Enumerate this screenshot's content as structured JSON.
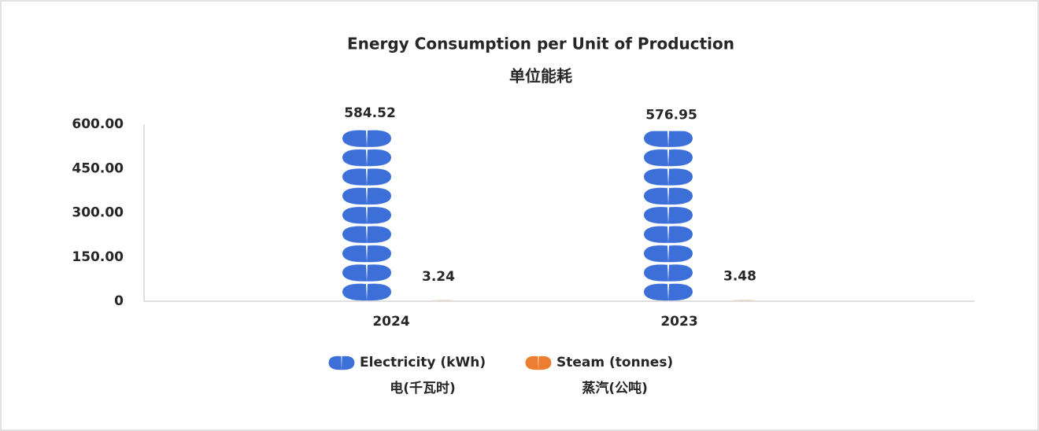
{
  "chart_data": {
    "type": "pictograph",
    "title": "Energy Consumption per Unit of Production",
    "subtitle": "单位能耗",
    "categories": [
      "2024",
      "2023"
    ],
    "series": [
      {
        "name": "Electricity (kWh)\n电(千瓦时)",
        "color": "#3d6fd9",
        "values": [
          584.52,
          576.95
        ]
      },
      {
        "name": "Steam (tonnes)\n蒸汽(公吨)",
        "color": "#ed7d31",
        "values": [
          3.24,
          3.48
        ]
      }
    ],
    "ylim": [
      0,
      600
    ],
    "yticks": [
      0,
      {
        "value": 150,
        "label": "150.00"
      },
      {
        "value": 300,
        "label": "300.00"
      },
      {
        "value": 450,
        "label": "450.00"
      },
      {
        "value": 600,
        "label": "600.00"
      }
    ],
    "grid": false
  }
}
